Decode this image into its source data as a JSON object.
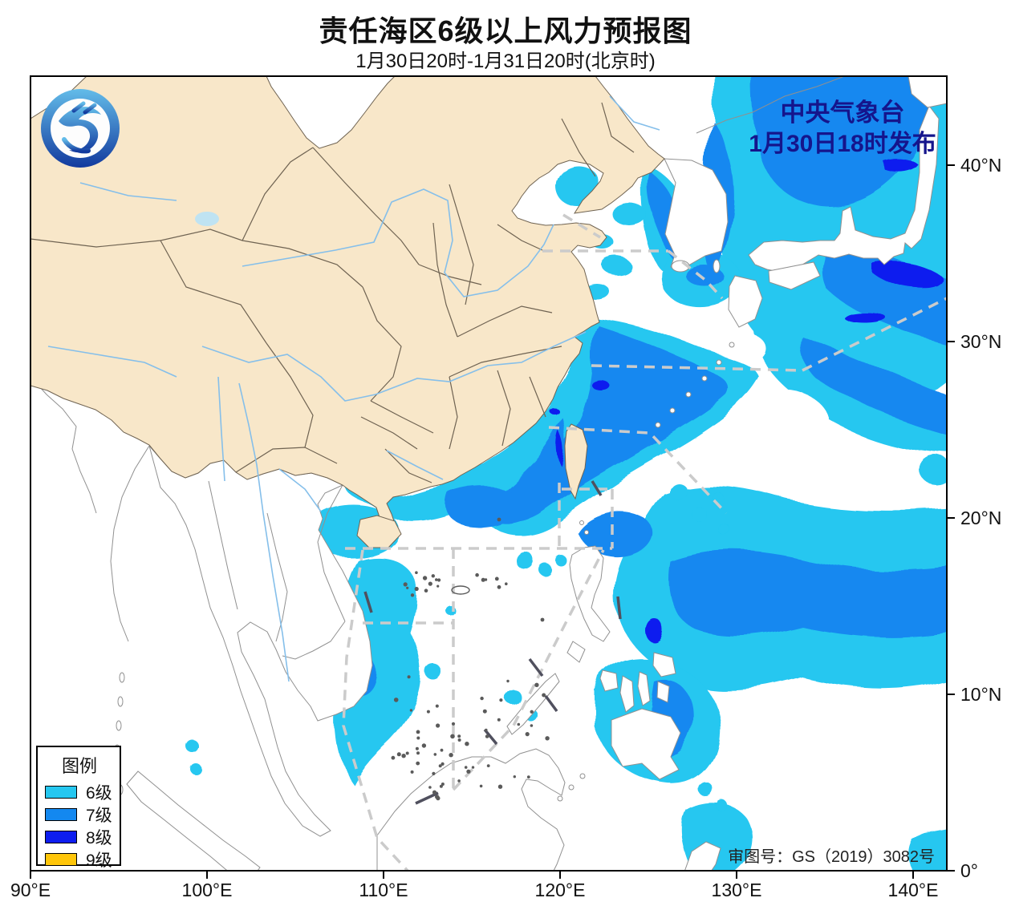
{
  "title": {
    "main": "责任海区6级以上风力预报图",
    "subtitle": "1月30日20时-1月31日20时(北京时)"
  },
  "publisher": {
    "line1": "中央气象台",
    "line2": "1月30日18时发布",
    "color": "#15158c"
  },
  "map_review": "审图号：GS（2019）3082号",
  "legend": {
    "title": "图例",
    "items": [
      {
        "label": "6级",
        "color": "#25C7F0"
      },
      {
        "label": "7级",
        "color": "#1388F0"
      },
      {
        "label": "8级",
        "color": "#0D1DEF"
      },
      {
        "label": "9级",
        "color": "#FFC60A"
      }
    ]
  },
  "axes": {
    "x_ticks": [
      "90°E",
      "100°E",
      "110°E",
      "120°E",
      "130°E",
      "140°E"
    ],
    "y_ticks": [
      "0°",
      "10°N",
      "20°N",
      "30°N",
      "40°N"
    ]
  },
  "map": {
    "colors": {
      "land_china": "#F8E7C9",
      "sea": "#FFFFFF",
      "china_coast": "#6f6352",
      "foreign_coast": "#909090",
      "province_border": "#6f6352",
      "river": "#85BFEA",
      "lake": "#BFE3F2",
      "sea_division_dash": "#CBCBCB",
      "nine_dash_line": "#50505E",
      "island_specks": "#5a5a5a"
    }
  }
}
